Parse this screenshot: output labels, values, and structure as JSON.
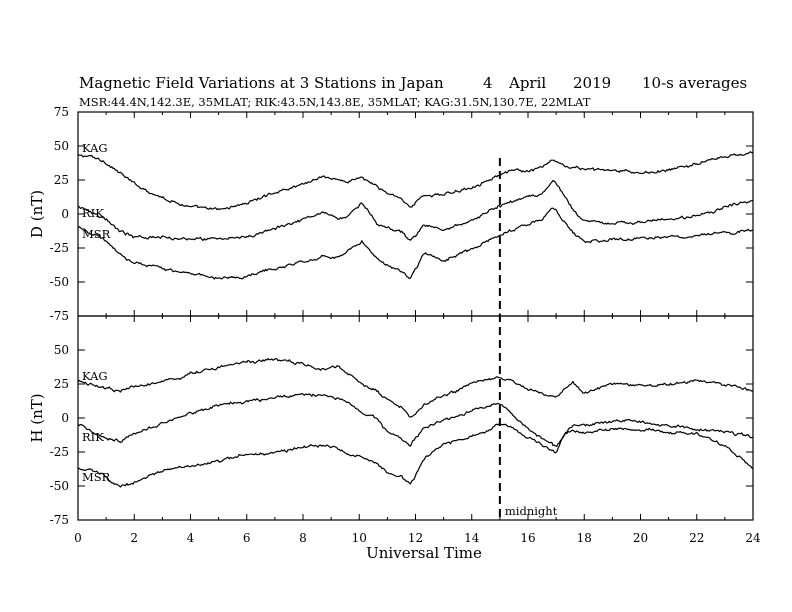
{
  "chart_data": {
    "type": "line",
    "title": "Magnetic Field Variations at 3 Stations in Japan",
    "date": {
      "day": "4",
      "month": "April",
      "year": "2019"
    },
    "averaging": "10-s averages",
    "subtitle": "MSR:44.4N,142.3E, 35MLAT;  RIK:43.5N,143.8E, 35MLAT;  KAG:31.5N,130.7E, 22MLAT",
    "xlabel": "Universal Time",
    "xlim": [
      0,
      24
    ],
    "xticks": [
      "0",
      "2",
      "4",
      "6",
      "8",
      "10",
      "12",
      "14",
      "16",
      "18",
      "20",
      "22",
      "24"
    ],
    "marker": {
      "x": 15,
      "label": "midnight",
      "style": "dashed"
    },
    "panels": [
      {
        "ylabel": "D (nT)",
        "ylim": [
          -75,
          75
        ],
        "yticks": [
          "75",
          "50",
          "25",
          "0",
          "-25",
          "-50",
          "-75"
        ],
        "series": [
          {
            "name": "KAG",
            "x": [
              0,
              0.5,
              1,
              1.5,
              2,
              3,
              4,
              5,
              6,
              7,
              8,
              8.7,
              9.2,
              9.6,
              10.1,
              10.6,
              11,
              11.5,
              11.8,
              12,
              12.3,
              13,
              14,
              15,
              15.6,
              16,
              16.5,
              16.9,
              17.2,
              17.6,
              18,
              19,
              20,
              21,
              22,
              23,
              24
            ],
            "y": [
              43,
              42,
              38,
              30,
              22,
              12,
              5,
              3,
              8,
              16,
              22,
              28,
              25,
              24,
              27,
              20,
              15,
              12,
              5,
              8,
              14,
              14,
              20,
              29,
              32,
              31,
              34,
              40,
              36,
              34,
              33,
              32,
              30,
              32,
              37,
              42,
              45
            ]
          },
          {
            "name": "RIK",
            "x": [
              0,
              0.5,
              1,
              1.5,
              2,
              3,
              4,
              5,
              6,
              7,
              8,
              8.7,
              9.2,
              9.6,
              10.1,
              10.6,
              11,
              11.5,
              11.8,
              12,
              12.3,
              13,
              14,
              15,
              15.6,
              16,
              16.5,
              16.9,
              17.2,
              17.6,
              18,
              19,
              20,
              21,
              22,
              23,
              24
            ],
            "y": [
              6,
              2,
              -4,
              -13,
              -17,
              -17,
              -18,
              -19,
              -17,
              -10,
              -4,
              2,
              -3,
              -2,
              8,
              -6,
              -10,
              -14,
              -20,
              -16,
              -8,
              -12,
              -5,
              6,
              10,
              12,
              14,
              25,
              16,
              3,
              -5,
              -7,
              -6,
              -4,
              -2,
              5,
              10
            ]
          },
          {
            "name": "MSR",
            "x": [
              0,
              0.5,
              1,
              1.5,
              2,
              3,
              4,
              5,
              6,
              7,
              8,
              8.7,
              9.2,
              9.6,
              10.1,
              10.6,
              11,
              11.5,
              11.8,
              12,
              12.3,
              13,
              14,
              15,
              15.6,
              16,
              16.5,
              16.9,
              17.2,
              17.6,
              18,
              19,
              20,
              21,
              22,
              23,
              24
            ],
            "y": [
              -10,
              -14,
              -20,
              -30,
              -36,
              -40,
              -44,
              -47,
              -46,
              -40,
              -35,
              -31,
              -33,
              -28,
              -20,
              -32,
              -37,
              -42,
              -48,
              -40,
              -30,
              -34,
              -26,
              -15,
              -10,
              -8,
              -4,
              5,
              -3,
              -14,
              -20,
              -19,
              -18,
              -17,
              -16,
              -14,
              -12
            ]
          }
        ]
      },
      {
        "ylabel": "H (nT)",
        "ylim": [
          -75,
          75
        ],
        "yticks": [
          "75",
          "50",
          "25",
          "0",
          "-25",
          "-50",
          "-75"
        ],
        "series": [
          {
            "name": "KAG",
            "x": [
              0,
              0.5,
              1,
              1.5,
              2,
              3,
              4,
              5,
              6,
              7,
              8,
              8.7,
              9.2,
              9.6,
              10.1,
              10.6,
              11,
              11.5,
              11.8,
              12,
              12.3,
              13,
              14,
              14.5,
              15,
              15.5,
              16,
              16.5,
              17,
              17.3,
              17.6,
              18,
              19,
              20,
              21,
              22,
              23,
              24
            ],
            "y": [
              27,
              25,
              22,
              20,
              23,
              27,
              32,
              37,
              41,
              43,
              40,
              36,
              38,
              33,
              25,
              20,
              14,
              8,
              1,
              3,
              10,
              17,
              25,
              28,
              31,
              26,
              21,
              18,
              15,
              22,
              26,
              18,
              26,
              24,
              25,
              28,
              25,
              20
            ]
          },
          {
            "name": "RIK",
            "x": [
              0,
              0.5,
              1,
              1.5,
              2,
              3,
              4,
              5,
              6,
              7,
              8,
              8.7,
              9.2,
              9.6,
              10.1,
              10.6,
              11,
              11.5,
              11.8,
              12,
              12.3,
              13,
              14,
              14.5,
              15,
              15.5,
              16,
              16.5,
              17,
              17.3,
              17.6,
              18,
              19,
              20,
              21,
              22,
              23,
              24
            ],
            "y": [
              -5,
              -10,
              -15,
              -17,
              -12,
              -4,
              4,
              9,
              13,
              15,
              17,
              17,
              15,
              12,
              3,
              0,
              -10,
              -15,
              -21,
              -15,
              -7,
              -2,
              5,
              8,
              10,
              2,
              -8,
              -15,
              -22,
              -12,
              -5,
              -5,
              -2,
              -3,
              -6,
              -8,
              -10,
              -14
            ]
          },
          {
            "name": "MSR",
            "x": [
              0,
              0.5,
              1,
              1.5,
              2,
              3,
              4,
              5,
              6,
              7,
              8,
              8.7,
              9.2,
              9.6,
              10.1,
              10.6,
              11,
              11.5,
              11.8,
              12,
              12.3,
              13,
              14,
              14.5,
              15,
              15.5,
              16,
              16.5,
              17,
              17.3,
              17.6,
              18,
              19,
              20,
              21,
              22,
              23,
              24
            ],
            "y": [
              -37,
              -38,
              -44,
              -51,
              -47,
              -38,
              -35,
              -32,
              -27,
              -25,
              -22,
              -20,
              -22,
              -27,
              -28,
              -33,
              -40,
              -44,
              -49,
              -42,
              -30,
              -19,
              -14,
              -10,
              -3,
              -8,
              -15,
              -20,
              -25,
              -12,
              -9,
              -11,
              -8,
              -9,
              -10,
              -12,
              -20,
              -38
            ]
          }
        ]
      }
    ]
  }
}
